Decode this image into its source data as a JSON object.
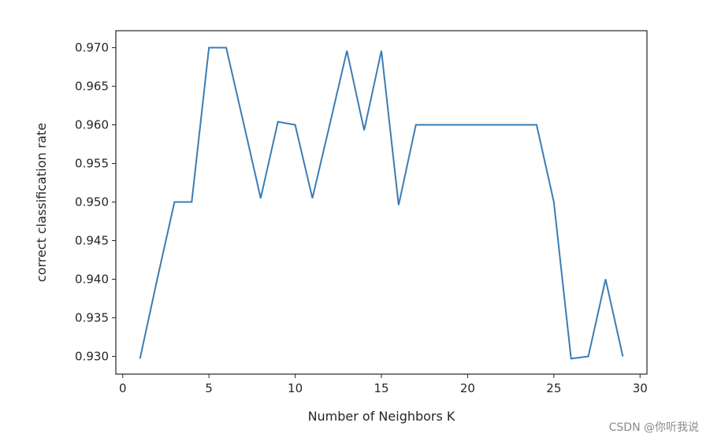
{
  "chart_data": {
    "type": "line",
    "title": "",
    "xlabel": "Number of Neighbors K",
    "ylabel": "correct classification rate",
    "xlim": [
      -0.4,
      30.4
    ],
    "ylim": [
      0.9277,
      0.9722
    ],
    "xticks": [
      0,
      5,
      10,
      15,
      20,
      25,
      30
    ],
    "xtick_labels": [
      "0",
      "5",
      "10",
      "15",
      "20",
      "25",
      "30"
    ],
    "yticks": [
      0.93,
      0.935,
      0.94,
      0.945,
      0.95,
      0.955,
      0.96,
      0.965,
      0.97
    ],
    "ytick_labels": [
      "0.930",
      "0.935",
      "0.940",
      "0.945",
      "0.950",
      "0.955",
      "0.960",
      "0.965",
      "0.970"
    ],
    "grid": false,
    "series": [
      {
        "color": "#3a7db5",
        "x": [
          1,
          2,
          3,
          4,
          5,
          6,
          7,
          8,
          9,
          10,
          11,
          12,
          13,
          14,
          15,
          16,
          17,
          18,
          19,
          20,
          21,
          22,
          23,
          24,
          25,
          26,
          27,
          28,
          29
        ],
        "y": [
          0.9297,
          0.94,
          0.95,
          0.95,
          0.97,
          0.97,
          0.9603,
          0.9505,
          0.9604,
          0.96,
          0.9505,
          0.96,
          0.9696,
          0.9593,
          0.9696,
          0.9496,
          0.96,
          0.96,
          0.96,
          0.96,
          0.96,
          0.96,
          0.96,
          0.96,
          0.95,
          0.9297,
          0.93,
          0.94,
          0.93
        ]
      }
    ]
  },
  "watermark": "CSDN @你听我说"
}
